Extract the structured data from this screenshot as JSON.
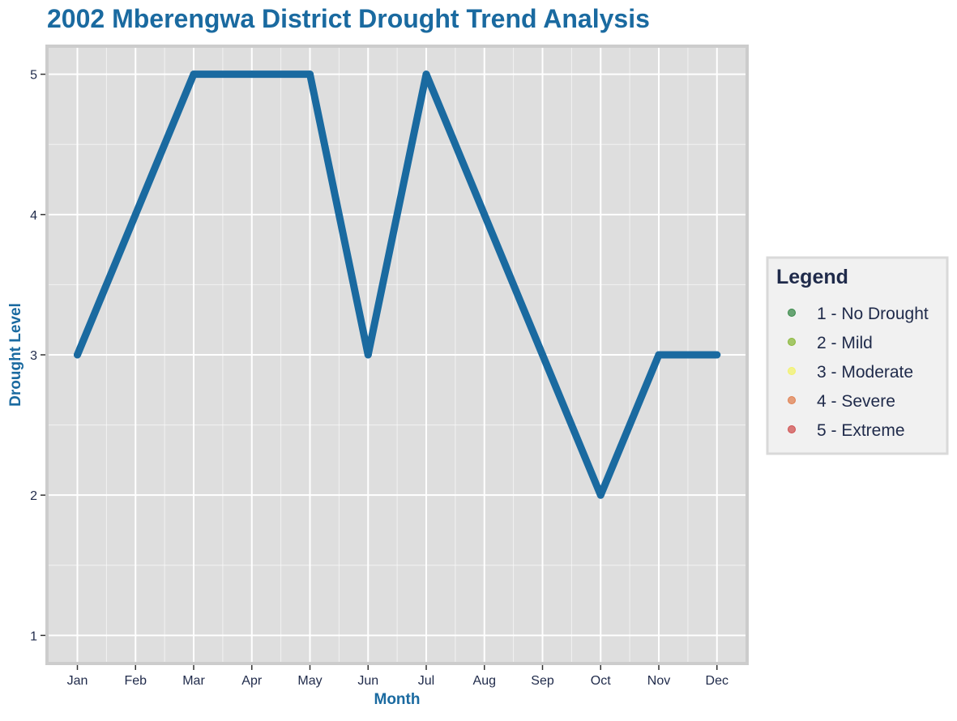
{
  "chart_data": {
    "type": "line",
    "title": "2002 Mberengwa District Drought Trend Analysis",
    "xlabel": "Month",
    "ylabel": "Drought Level",
    "categories": [
      "Jan",
      "Feb",
      "Mar",
      "Apr",
      "May",
      "Jun",
      "Jul",
      "Aug",
      "Sep",
      "Oct",
      "Nov",
      "Dec"
    ],
    "series": [
      {
        "values": [
          3,
          4,
          5,
          5,
          5,
          3,
          5,
          4,
          3,
          2,
          3,
          3
        ]
      }
    ],
    "ylim": [
      0.8,
      5.2
    ],
    "yticks": [
      "1",
      "2",
      "3",
      "4",
      "5"
    ],
    "grid": true,
    "legend": {
      "title": "Legend",
      "position": "right",
      "items": [
        {
          "label": "1 - No Drought",
          "color": "#3a8a4a"
        },
        {
          "label": "2 - Mild",
          "color": "#8ab83a"
        },
        {
          "label": "3 - Moderate",
          "color": "#f2f26a"
        },
        {
          "label": "4 - Severe",
          "color": "#e08050"
        },
        {
          "label": "5 - Extreme",
          "color": "#d05050"
        }
      ]
    },
    "colors": {
      "line": "#1a6aa0",
      "title": "#1a6aa0",
      "axis_title": "#1a6aa0",
      "tick_label": "#1f2a4a",
      "legend_text": "#1f2a4a",
      "panel": "#dedede",
      "panel_border": "#cccccc",
      "grid": "#ffffff",
      "legend_bg": "#f1f1f1",
      "legend_border": "#d9d9d9"
    }
  }
}
